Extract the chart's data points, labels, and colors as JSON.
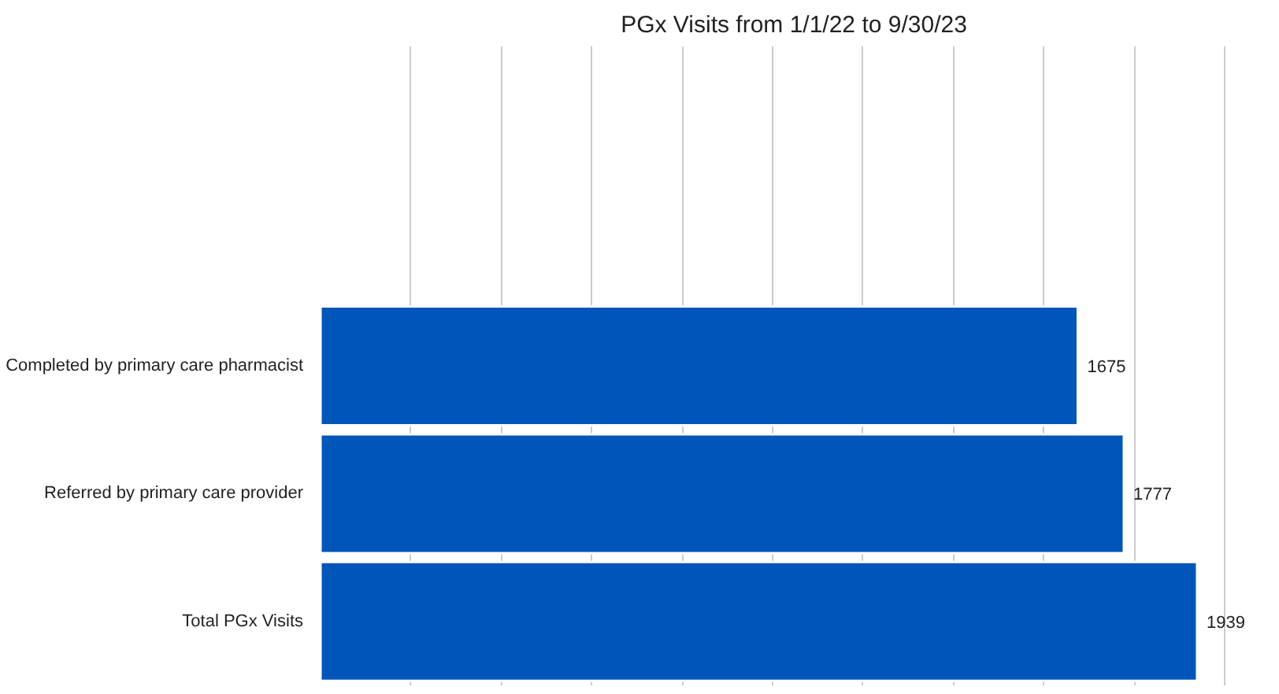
{
  "chart_data": {
    "type": "bar",
    "orientation": "horizontal",
    "title": "PGx Visits from 1/1/22 to 9/30/23",
    "categories": [
      null,
      null,
      "Completed by primary care pharmacist",
      "Referred by primary care provider",
      "Total PGx Visits"
    ],
    "values": [
      null,
      null,
      1675,
      1777,
      1939
    ],
    "color": "#0055bb",
    "data_labels": true,
    "tick_labels": "y",
    "grid": "x"
  }
}
